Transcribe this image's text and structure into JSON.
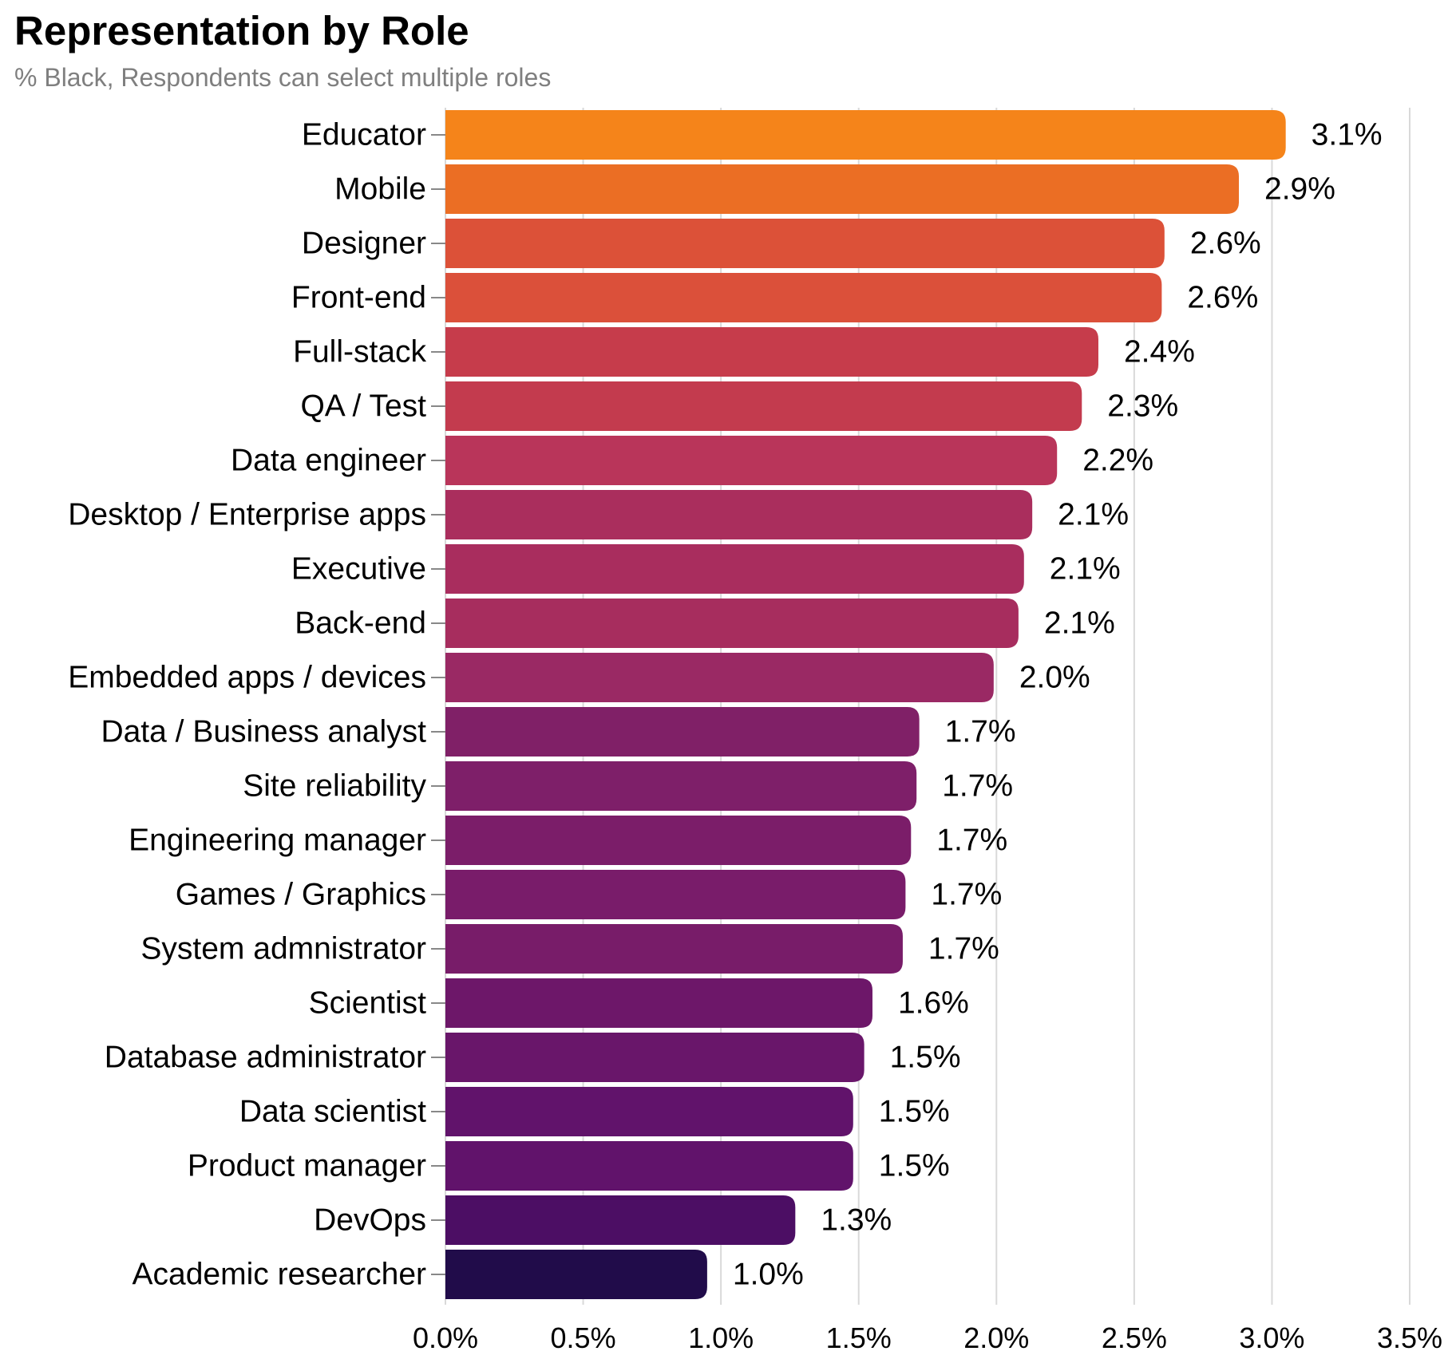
{
  "header": {
    "title": "Representation by Role",
    "subtitle": "% Black, Respondents can select multiple roles"
  },
  "chart_data": {
    "type": "bar",
    "orientation": "horizontal",
    "title": "Representation by Role",
    "subtitle": "% Black, Respondents can select multiple roles",
    "xlabel": "",
    "ylabel": "",
    "xlim": [
      0,
      3.5
    ],
    "x_ticks": [
      0,
      0.5,
      1.0,
      1.5,
      2.0,
      2.5,
      3.0,
      3.5
    ],
    "x_tick_labels": [
      "0.0%",
      "0.5%",
      "1.0%",
      "1.5%",
      "2.0%",
      "2.5%",
      "3.0%",
      "3.5%"
    ],
    "grid": "vertical",
    "color_scale": "inferno-like (dark purple for low values to orange for high values)",
    "categories": [
      "Educator",
      "Mobile",
      "Designer",
      "Front-end",
      "Full-stack",
      "QA / Test",
      "Data engineer",
      "Desktop / Enterprise apps",
      "Executive",
      "Back-end",
      "Embedded apps / devices",
      "Data / Business analyst",
      "Site reliability",
      "Engineering manager",
      "Games / Graphics",
      "System admnistrator",
      "Scientist",
      "Database administrator",
      "Data scientist",
      "Product manager",
      "DevOps",
      "Academic researcher"
    ],
    "values": [
      3.05,
      2.88,
      2.61,
      2.6,
      2.37,
      2.31,
      2.22,
      2.13,
      2.1,
      2.08,
      1.99,
      1.72,
      1.71,
      1.69,
      1.67,
      1.66,
      1.55,
      1.52,
      1.48,
      1.48,
      1.27,
      0.95
    ],
    "value_labels": [
      "3.1%",
      "2.9%",
      "2.6%",
      "2.6%",
      "2.4%",
      "2.3%",
      "2.2%",
      "2.1%",
      "2.1%",
      "2.1%",
      "2.0%",
      "1.7%",
      "1.7%",
      "1.7%",
      "1.7%",
      "1.7%",
      "1.6%",
      "1.5%",
      "1.5%",
      "1.5%",
      "1.3%",
      "1.0%"
    ],
    "colors": [
      "#F5841A",
      "#EB6E24",
      "#DC5138",
      "#DB503A",
      "#C63C4B",
      "#C33B4E",
      "#B9355A",
      "#AA2E5D",
      "#A92D5E",
      "#A72D5E",
      "#9A2964",
      "#802067",
      "#7E1F69",
      "#7B1D69",
      "#791C6A",
      "#781C69",
      "#6D1769",
      "#69166A",
      "#61136B",
      "#61136B",
      "#4C0E64",
      "#210C4A"
    ]
  }
}
